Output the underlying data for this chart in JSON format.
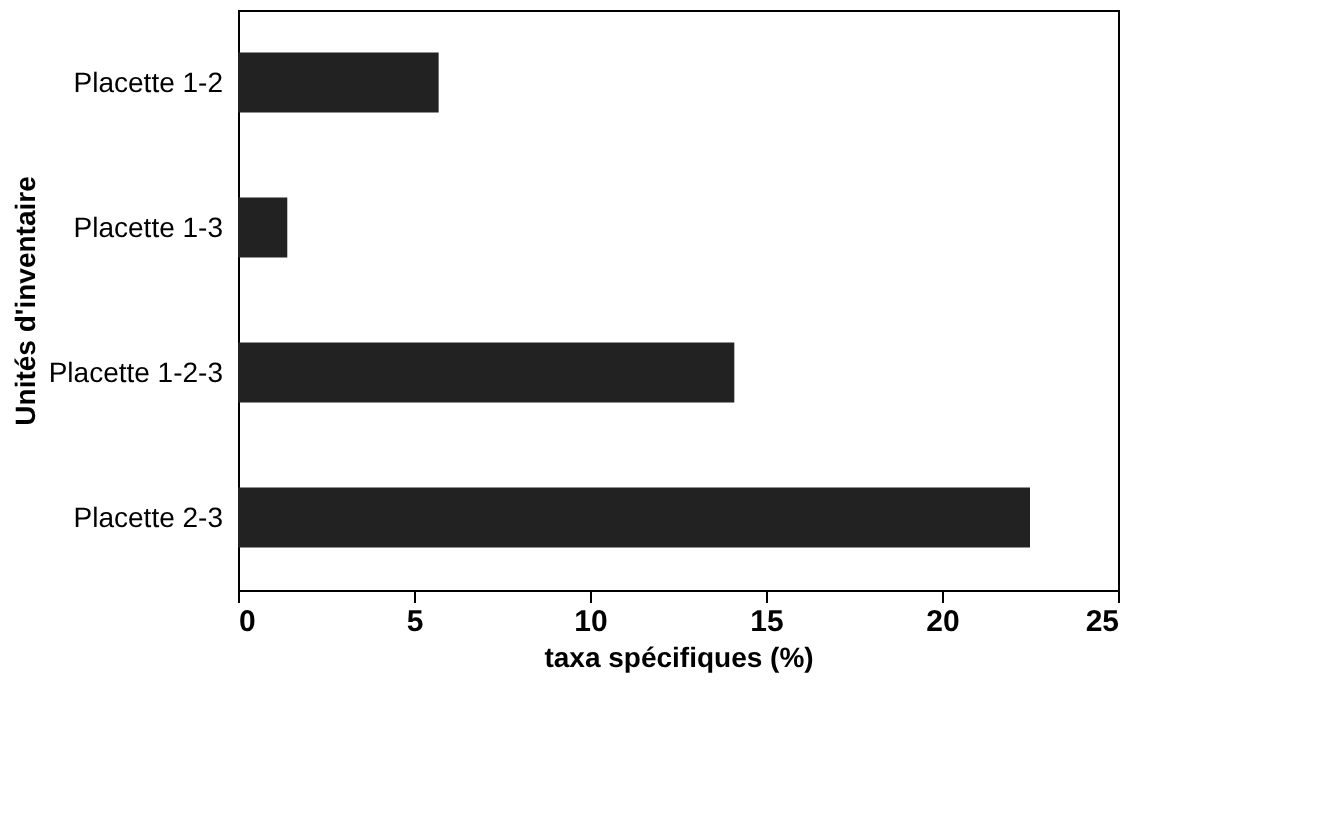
{
  "chart_data": {
    "type": "bar",
    "orientation": "horizontal",
    "xlabel": "taxa spécifiques  (%)",
    "ylabel": "Unités d'inventaire",
    "categories": [
      "Placette 1-2",
      "Placette 1-3",
      "Placette 1-2-3",
      "Placette 2-3"
    ],
    "values": [
      5.7,
      1.4,
      14.1,
      22.5
    ],
    "color": "#222222",
    "xlim": [
      0,
      25
    ],
    "xticks": [
      0,
      5,
      10,
      15,
      20,
      25
    ],
    "grid": false
  }
}
